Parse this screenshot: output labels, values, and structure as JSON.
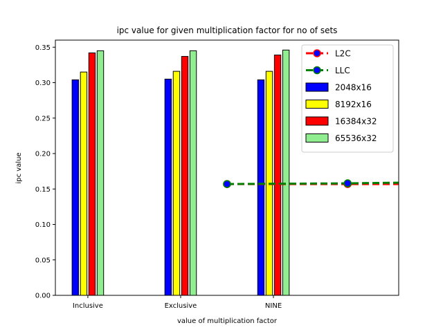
{
  "chart_data": {
    "type": "bar",
    "title": "ipc value for given multiplication factor for no of sets",
    "xlabel": "value of multiplication factor",
    "ylabel": "ipc value",
    "categories": [
      "Inclusive",
      "Exclusive",
      "NINE"
    ],
    "ylim": [
      0.0,
      0.36
    ],
    "yticks": [
      "0.00",
      "0.05",
      "0.10",
      "0.15",
      "0.20",
      "0.25",
      "0.30",
      "0.35"
    ],
    "grid": false,
    "legend_position": "top-right",
    "series": [
      {
        "name": "2048x16",
        "color": "#0000ff",
        "values": [
          0.304,
          0.305,
          0.304
        ]
      },
      {
        "name": "8192x16",
        "color": "#ffff00",
        "values": [
          0.315,
          0.316,
          0.316
        ]
      },
      {
        "name": "16384x32",
        "color": "#ff0000",
        "values": [
          0.342,
          0.337,
          0.339
        ]
      },
      {
        "name": "65536x32",
        "color": "#90ee90",
        "values": [
          0.345,
          0.345,
          0.346
        ]
      }
    ],
    "lines": [
      {
        "name": "L2C",
        "color": "#ff0000",
        "marker_color": "#0000ff",
        "style": "dashed",
        "x": [
          1.5,
          2.8,
          3.4
        ],
        "y": [
          0.157,
          0.157,
          0.157
        ]
      },
      {
        "name": "LLC",
        "color": "#008000",
        "marker_color": "#0000ff",
        "style": "dashed",
        "x": [
          1.5,
          2.8,
          3.4
        ],
        "y": [
          0.157,
          0.158,
          0.159
        ]
      }
    ]
  }
}
